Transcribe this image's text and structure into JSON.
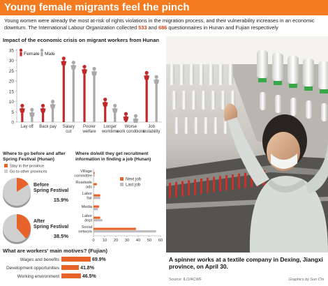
{
  "header": {
    "title": "Young female migrants feel the pinch",
    "intro_a": "Young women were already the most at-risk of rights violations in the migration process, and their vulnerability increases in an economic downturn. The International Labour Organization collected ",
    "intro_n1": "533",
    "intro_and": " and ",
    "intro_n2": "686",
    "intro_b": " questionnaires in Hunan and Fujian respectively"
  },
  "colors": {
    "accent": "#f47b20",
    "female": "#c0282a",
    "male": "#a9a9a9",
    "stay": "#e8632a",
    "go": "#d0d0d0",
    "last_job": "#bdbdbd"
  },
  "chart_data": [
    {
      "type": "bar",
      "title": "Impact of the economic crisis on migrant workers from Hunan",
      "ylim": [
        0,
        35
      ],
      "yticks": [
        0,
        5,
        10,
        15,
        20,
        25,
        30,
        35
      ],
      "categories": [
        "Lay off",
        "Back pay",
        "Salary cut",
        "Poorer welfare",
        "Longer worktime",
        "Worse work conditions",
        "Job instability"
      ],
      "series": [
        {
          "name": "Female",
          "values": [
            8,
            8,
            31,
            27,
            11,
            4,
            24
          ]
        },
        {
          "name": "Male",
          "values": [
            6,
            10,
            29,
            26,
            8,
            3,
            22
          ]
        }
      ],
      "legend": "top-left"
    },
    {
      "type": "pie",
      "title": "Where to go before and after Spring Festival (Hunan)",
      "legend": [
        "Stay in the province",
        "Go to other provinces"
      ],
      "pies": [
        {
          "label": "Before Spring Festival",
          "value": 15.9,
          "display": "15.9%"
        },
        {
          "label": "After Spring Festival",
          "value": 38.5,
          "display": "38.5%"
        }
      ]
    },
    {
      "type": "bar",
      "orientation": "horizontal",
      "title": "Where do/will they get recruitment information in finding a job (Hunan)",
      "categories": [
        "Village committee",
        "Roadside ads",
        "Labor fair",
        "Media",
        "Labor dept",
        "Social network"
      ],
      "series": [
        {
          "name": "Next job",
          "values": [
            1,
            3,
            6,
            5,
            6,
            38
          ]
        },
        {
          "name": "Last job",
          "values": [
            1,
            1,
            6,
            4,
            8,
            56
          ]
        }
      ],
      "xlim": [
        0,
        60
      ],
      "xticks": [
        0,
        10,
        20,
        30,
        40,
        50,
        60
      ],
      "legend": "top-right"
    },
    {
      "type": "bar",
      "orientation": "horizontal",
      "title": "What are workers' main motives? (Fujian)",
      "categories": [
        "Wages and benefits",
        "Development opportunities",
        "Working environment"
      ],
      "values": [
        69.9,
        41.8,
        46.5
      ],
      "display": [
        "69.9%",
        "41.8%",
        "46.5%"
      ]
    }
  ],
  "photo": {
    "caption": "A spinner works at a textile company in Dexing, Jiangxi province, on April 30."
  },
  "footer": {
    "source": "Source: ILO/ACWF",
    "credit": "Graphics by Sun Chi"
  }
}
